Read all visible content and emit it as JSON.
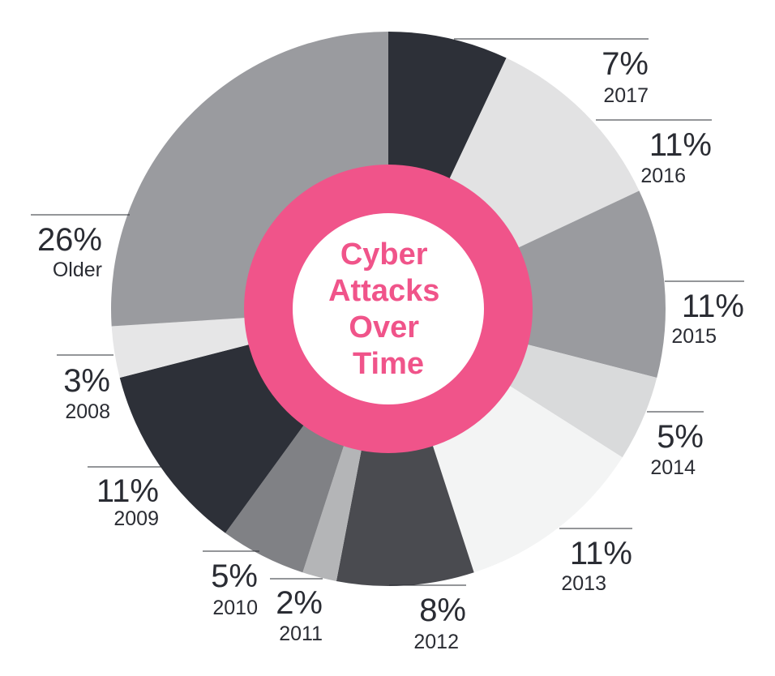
{
  "chart_data": {
    "type": "pie",
    "title": "Cyber Attacks Over Time",
    "title_lines": [
      "Cyber",
      "Attacks",
      "Over",
      "Time"
    ],
    "slices": [
      {
        "label": "2017",
        "percent_text": "7%",
        "value": 7,
        "color": "#2d3038"
      },
      {
        "label": "2016",
        "percent_text": "11%",
        "value": 11,
        "color": "#e2e2e3"
      },
      {
        "label": "2015",
        "percent_text": "11%",
        "value": 11,
        "color": "#9a9b9f"
      },
      {
        "label": "2014",
        "percent_text": "5%",
        "value": 5,
        "color": "#d9dadb"
      },
      {
        "label": "2013",
        "percent_text": "11%",
        "value": 11,
        "color": "#f3f4f4"
      },
      {
        "label": "2012",
        "percent_text": "8%",
        "value": 8,
        "color": "#4a4b50"
      },
      {
        "label": "2011",
        "percent_text": "2%",
        "value": 2,
        "color": "#b4b5b7"
      },
      {
        "label": "2010",
        "percent_text": "5%",
        "value": 5,
        "color": "#808185"
      },
      {
        "label": "2009",
        "percent_text": "11%",
        "value": 11,
        "color": "#2d3038"
      },
      {
        "label": "2008",
        "percent_text": "3%",
        "value": 3,
        "color": "#e6e6e7"
      },
      {
        "label": "Older",
        "percent_text": "26%",
        "value": 26,
        "color": "#9a9b9f"
      }
    ],
    "accent_color": "#f0548a",
    "legend": "none"
  }
}
